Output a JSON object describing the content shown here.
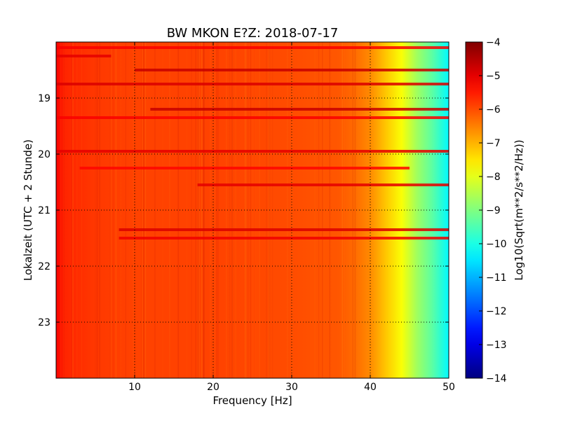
{
  "chart_data": {
    "type": "heatmap",
    "title": "BW MKON E?Z: 2018-07-17",
    "xlabel": "Frequency [Hz]",
    "ylabel": "Lokalzeit (UTC + 2 Stunde)",
    "xlim": [
      0,
      50
    ],
    "ylim": [
      24,
      18
    ],
    "x_ticks": [
      10,
      20,
      30,
      40,
      50
    ],
    "y_ticks": [
      19,
      20,
      21,
      22,
      23
    ],
    "grid": true,
    "colorbar": {
      "label": "Log10(Sqrt(m**2/s**2/Hz))",
      "range": [
        -14,
        -4
      ],
      "ticks": [
        -4,
        -5,
        -6,
        -7,
        -8,
        -9,
        -10,
        -11,
        -12,
        -13,
        -14
      ],
      "colormap": "jet"
    },
    "spectrum_profile": {
      "frequency_hz": [
        0,
        1,
        5,
        10,
        20,
        30,
        36,
        38,
        40,
        42,
        44,
        46,
        48,
        50
      ],
      "log10_amplitude": [
        -5.2,
        -5.6,
        -5.8,
        -5.9,
        -5.9,
        -6.0,
        -6.1,
        -6.3,
        -6.6,
        -7.2,
        -7.8,
        -8.7,
        -9.4,
        -10.3
      ]
    },
    "highlighted_rows": [
      {
        "time": 18.1,
        "from_hz": 0,
        "to_hz": 50,
        "log10_amplitude": -5.2
      },
      {
        "time": 18.25,
        "from_hz": 0,
        "to_hz": 7,
        "log10_amplitude": -5.0
      },
      {
        "time": 18.5,
        "from_hz": 10,
        "to_hz": 50,
        "log10_amplitude": -4.7
      },
      {
        "time": 18.75,
        "from_hz": 0,
        "to_hz": 50,
        "log10_amplitude": -4.9
      },
      {
        "time": 19.2,
        "from_hz": 12,
        "to_hz": 50,
        "log10_amplitude": -4.7
      },
      {
        "time": 19.35,
        "from_hz": 0,
        "to_hz": 50,
        "log10_amplitude": -5.2
      },
      {
        "time": 19.95,
        "from_hz": 0,
        "to_hz": 50,
        "log10_amplitude": -5.0
      },
      {
        "time": 20.25,
        "from_hz": 3,
        "to_hz": 45,
        "log10_amplitude": -5.3
      },
      {
        "time": 20.55,
        "from_hz": 18,
        "to_hz": 50,
        "log10_amplitude": -5.0
      },
      {
        "time": 21.35,
        "from_hz": 8,
        "to_hz": 50,
        "log10_amplitude": -4.9
      },
      {
        "time": 21.5,
        "from_hz": 8,
        "to_hz": 50,
        "log10_amplitude": -5.1
      }
    ]
  }
}
